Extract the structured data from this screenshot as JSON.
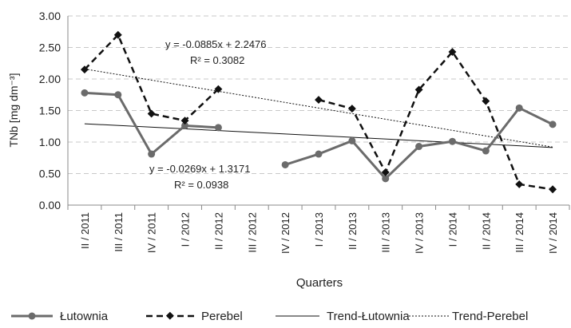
{
  "chart_data": {
    "type": "line",
    "xlabel": "Quarters",
    "ylabel": "TNb [mg dm⁻³]",
    "ylim": [
      0,
      3
    ],
    "yticks": [
      "0.00",
      "0.50",
      "1.00",
      "1.50",
      "2.00",
      "2.50",
      "3.00"
    ],
    "categories": [
      "II / 2011",
      "III / 2011",
      "IV / 2011",
      "I / 2012",
      "II / 2012",
      "III / 2012",
      "IV / 2012",
      "I / 2013",
      "II / 2013",
      "III / 2013",
      "IV / 2013",
      "I / 2014",
      "II / 2014",
      "III / 2014",
      "IV / 2014"
    ],
    "grid": "horizontal dashed",
    "legend_position": "bottom",
    "series": [
      {
        "name": "Łutownia",
        "style": "solid-marker-circle",
        "color": "#6b6b6b",
        "values": [
          1.78,
          1.75,
          0.81,
          1.26,
          1.23,
          null,
          0.64,
          0.81,
          1.02,
          0.42,
          0.93,
          1.01,
          0.86,
          1.54,
          1.28
        ]
      },
      {
        "name": "Perebel",
        "style": "dashed-marker-diamond",
        "color": "#111111",
        "values": [
          2.15,
          2.7,
          1.45,
          1.34,
          1.84,
          null,
          null,
          1.67,
          1.53,
          0.52,
          1.83,
          2.43,
          1.65,
          0.33,
          0.25
        ]
      }
    ],
    "trendlines": [
      {
        "name": "Trend-Łutownia",
        "style": "solid-thin",
        "color": "#111111",
        "slope": -0.0269,
        "intercept": 1.3171,
        "equation": "y = -0.0269x + 1.3171",
        "r2": "R² = 0.0938"
      },
      {
        "name": "Trend-Perebel",
        "style": "dotted-thin",
        "color": "#111111",
        "slope": -0.0885,
        "intercept": 2.2476,
        "equation": "y = -0.0885x + 2.2476",
        "r2": "R² = 0.3082"
      }
    ]
  }
}
